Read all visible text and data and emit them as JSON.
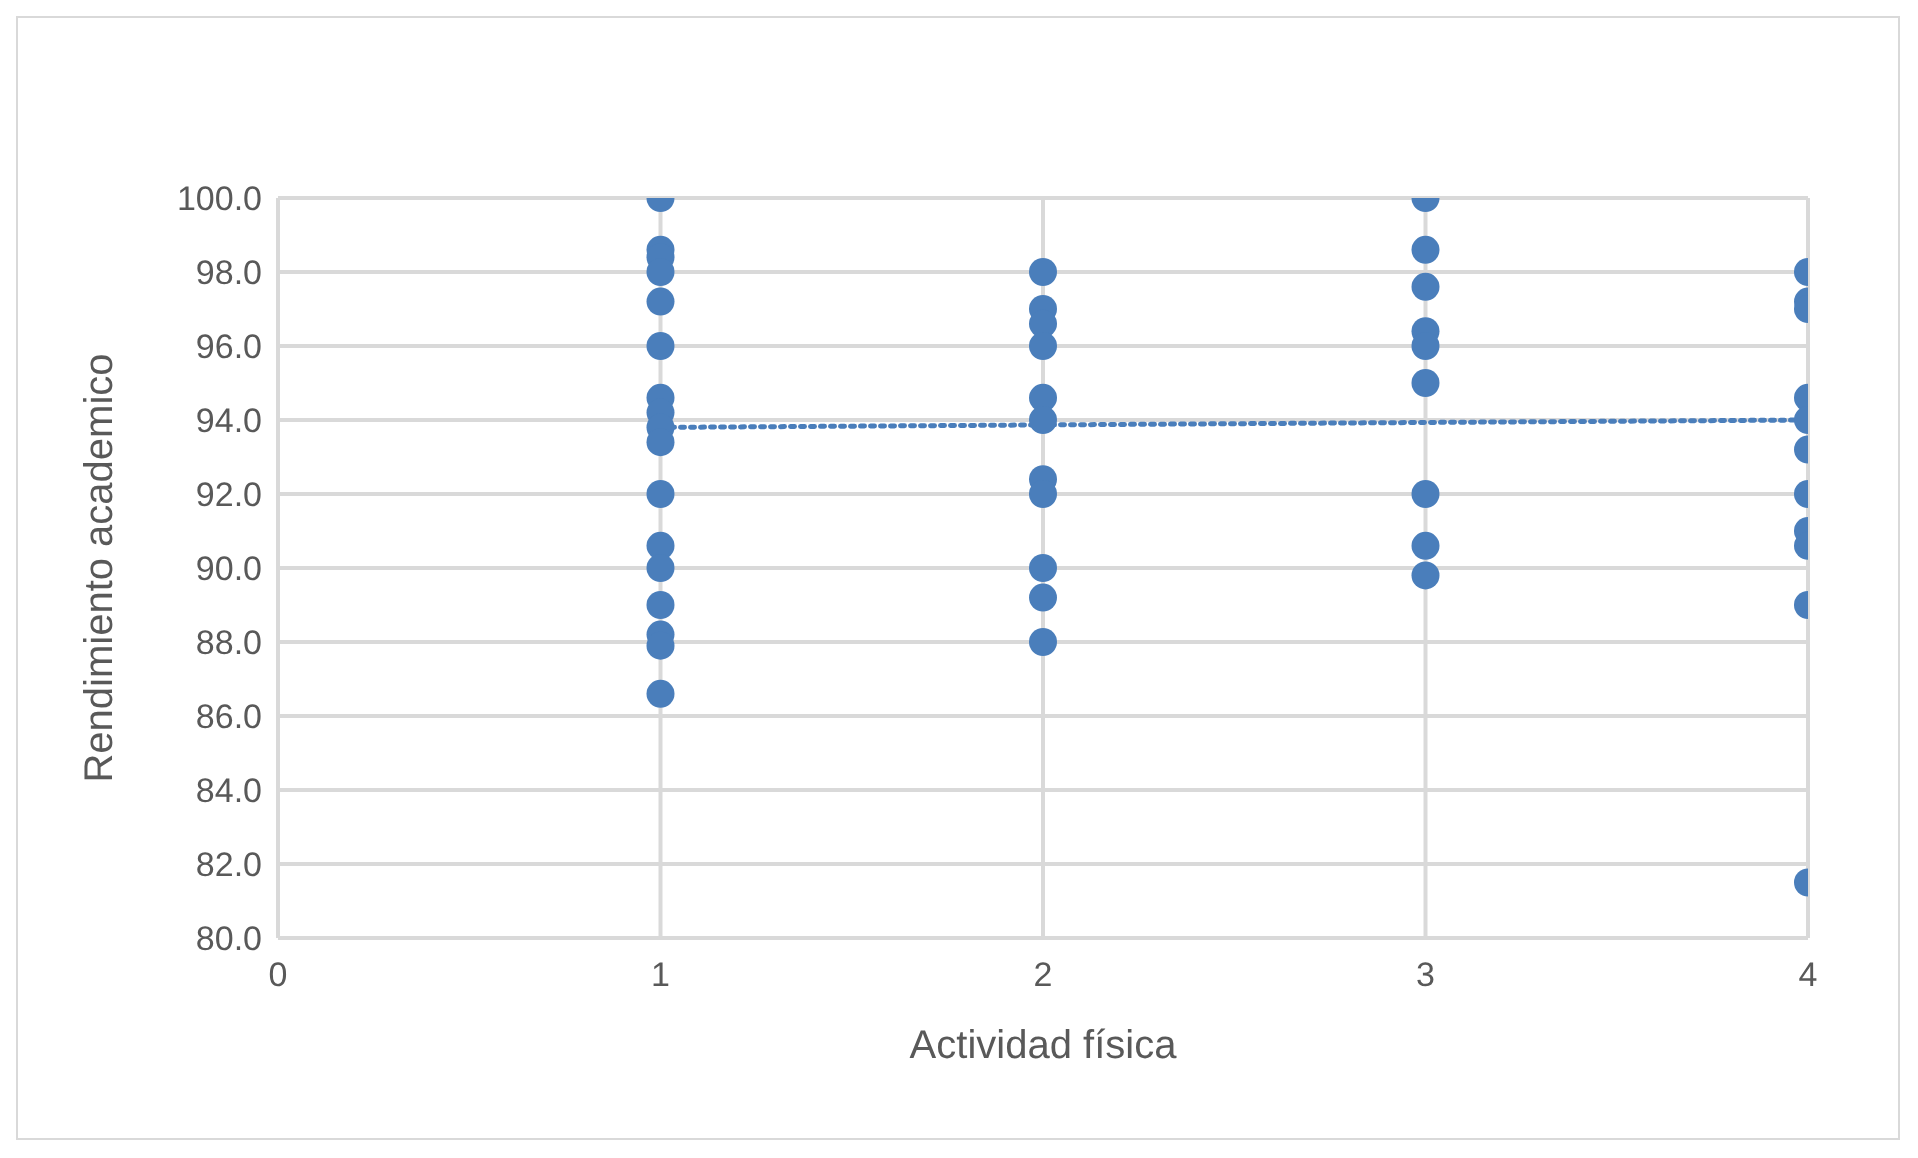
{
  "chart_data": {
    "type": "scatter",
    "xlabel": "Actividad física",
    "ylabel": "Rendimiento academico",
    "xlim": [
      0,
      4
    ],
    "xticks": [
      0,
      1,
      2,
      3,
      4
    ],
    "ylim": [
      80,
      100
    ],
    "yticks": [
      {
        "value": 80,
        "label": "80.0"
      },
      {
        "value": 82,
        "label": "82.0"
      },
      {
        "value": 84,
        "label": "84.0"
      },
      {
        "value": 86,
        "label": "86.0"
      },
      {
        "value": 88,
        "label": "88.0"
      },
      {
        "value": 90,
        "label": "90.0"
      },
      {
        "value": 92,
        "label": "92.0"
      },
      {
        "value": 94,
        "label": "94.0"
      },
      {
        "value": 96,
        "label": "96.0"
      },
      {
        "value": 98,
        "label": "98.0"
      },
      {
        "value": 100,
        "label": "100.0"
      }
    ],
    "grid": true,
    "marker": "circle",
    "series": [
      {
        "type": "scatter",
        "color": "#4a7ebb",
        "x": [
          1,
          1,
          1,
          1,
          1,
          1,
          1,
          1,
          1,
          1,
          1,
          1,
          1,
          1,
          1,
          1,
          1,
          2,
          2,
          2,
          2,
          2,
          2,
          2,
          2,
          2,
          2,
          2,
          3,
          3,
          3,
          3,
          3,
          3,
          3,
          3,
          3,
          4,
          4,
          4,
          4,
          4,
          4,
          4,
          4,
          4,
          4,
          4
        ],
        "values": [
          100,
          98.6,
          98.4,
          98.0,
          97.2,
          96.0,
          94.6,
          94.2,
          93.8,
          93.4,
          92.0,
          90.6,
          90.0,
          89.0,
          88.2,
          87.9,
          86.6,
          98.0,
          97.0,
          96.6,
          96.0,
          94.6,
          94.0,
          92.4,
          92.0,
          90.0,
          89.2,
          88.0,
          100,
          98.6,
          97.6,
          96.4,
          96.0,
          95.0,
          92.0,
          90.6,
          89.8,
          98.0,
          97.2,
          97.0,
          94.6,
          94.0,
          93.2,
          92.0,
          91.0,
          90.6,
          89.0,
          81.5
        ]
      },
      {
        "type": "line",
        "color": "#4a7ebb",
        "line_style": "dotted",
        "marker": "none",
        "x": [
          1,
          4
        ],
        "values": [
          93.8,
          94.0
        ]
      }
    ]
  }
}
